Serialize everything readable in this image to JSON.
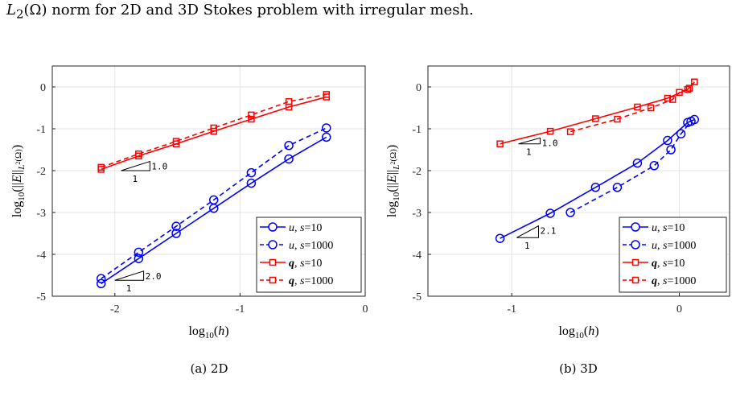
{
  "caption": {
    "prefix": "L",
    "sub": "2",
    "text": "(Ω) norm for 2D and 3D Stokes problem with irregular mesh."
  },
  "colors": {
    "u": "#0000ff",
    "q": "#ff0000",
    "grid": "#e6e6e6",
    "axis": "#262626"
  },
  "chart_data": [
    {
      "type": "line",
      "caption": "(a) 2D",
      "xlabel": "log10(h)",
      "ylabel": "log10(||E||L2(Ω))",
      "xlim": [
        -2.5,
        0
      ],
      "ylim": [
        -5,
        0.5
      ],
      "xticks": [
        -2,
        -1,
        0
      ],
      "xtick_labels": [
        "-2",
        "-1",
        "0"
      ],
      "yticks": [
        0,
        -1,
        -2,
        -3,
        -4,
        -5
      ],
      "ytick_labels": [
        "0",
        "-1",
        "-2",
        "-3",
        "-4",
        "-5"
      ],
      "grid": true,
      "legend_position": "bottom-right",
      "series": [
        {
          "name": "u, s=10",
          "var": "u",
          "s": "s=10",
          "color": "#0000ff",
          "marker": "circle",
          "dash": false,
          "x": [
            -2.11,
            -1.81,
            -1.51,
            -1.21,
            -0.91,
            -0.61,
            -0.31
          ],
          "y": [
            -4.7,
            -4.1,
            -3.5,
            -2.9,
            -2.3,
            -1.72,
            -1.2
          ]
        },
        {
          "name": "u, s=1000",
          "var": "u",
          "s": "s=1000",
          "color": "#0000ff",
          "marker": "circle",
          "dash": true,
          "x": [
            -2.11,
            -1.81,
            -1.51,
            -1.21,
            -0.91,
            -0.61,
            -0.31
          ],
          "y": [
            -4.58,
            -3.95,
            -3.33,
            -2.7,
            -2.05,
            -1.4,
            -0.98
          ]
        },
        {
          "name": "q, s=10",
          "var": "q",
          "s": "s=10",
          "color": "#ff0000",
          "marker": "square",
          "dash": false,
          "x": [
            -2.11,
            -1.81,
            -1.51,
            -1.21,
            -0.91,
            -0.61,
            -0.31
          ],
          "y": [
            -1.97,
            -1.65,
            -1.36,
            -1.06,
            -0.77,
            -0.48,
            -0.24
          ]
        },
        {
          "name": "q, s=1000",
          "var": "q",
          "s": "s=1000",
          "color": "#ff0000",
          "marker": "square",
          "dash": true,
          "x": [
            -2.11,
            -1.81,
            -1.51,
            -1.21,
            -0.91,
            -0.61,
            -0.31
          ],
          "y": [
            -1.92,
            -1.6,
            -1.3,
            -0.98,
            -0.67,
            -0.35,
            -0.18
          ]
        }
      ],
      "slope_triangles": [
        {
          "label": "1.0",
          "run_label": "1",
          "x0": -1.95,
          "x1": -1.72,
          "y0": -2.0,
          "y1": -1.78
        },
        {
          "label": "2.0",
          "run_label": "1",
          "x0": -2.0,
          "x1": -1.77,
          "y0": -4.62,
          "y1": -4.4
        }
      ]
    },
    {
      "type": "line",
      "caption": "(b) 3D",
      "xlabel": "log10(h)",
      "ylabel": "log10(||E||L2(Ω))",
      "xlim": [
        -1.5,
        0.3
      ],
      "ylim": [
        -5,
        0.5
      ],
      "xticks": [
        -1,
        0
      ],
      "xtick_labels": [
        "-1",
        "0"
      ],
      "yticks": [
        0,
        -1,
        -2,
        -3,
        -4,
        -5
      ],
      "ytick_labels": [
        "0",
        "-1",
        "-2",
        "-3",
        "-4",
        "-5"
      ],
      "grid": true,
      "legend_position": "bottom-right",
      "series": [
        {
          "name": "u, s=10",
          "var": "u",
          "s": "s=10",
          "color": "#0000ff",
          "marker": "circle",
          "dash": false,
          "x": [
            -1.07,
            -0.77,
            -0.5,
            -0.25,
            -0.07,
            0.05,
            0.09
          ],
          "y": [
            -3.62,
            -3.02,
            -2.4,
            -1.82,
            -1.28,
            -0.85,
            -0.78
          ]
        },
        {
          "name": "u, s=1000",
          "var": "u",
          "s": "s=1000",
          "color": "#0000ff",
          "marker": "circle",
          "dash": true,
          "x": [
            -0.65,
            -0.37,
            -0.15,
            -0.05,
            0.01,
            0.07
          ],
          "y": [
            -3.0,
            -2.4,
            -1.88,
            -1.5,
            -1.12,
            -0.82
          ]
        },
        {
          "name": "q, s=10",
          "var": "q",
          "s": "s=10",
          "color": "#ff0000",
          "marker": "square",
          "dash": false,
          "x": [
            -1.07,
            -0.77,
            -0.5,
            -0.25,
            -0.07,
            0.05,
            0.09
          ],
          "y": [
            -1.36,
            -1.06,
            -0.76,
            -0.48,
            -0.27,
            -0.06,
            0.12
          ]
        },
        {
          "name": "q, s=1000",
          "var": "q",
          "s": "s=1000",
          "color": "#ff0000",
          "marker": "square",
          "dash": true,
          "x": [
            -0.65,
            -0.37,
            -0.17,
            -0.04,
            0.0,
            0.06
          ],
          "y": [
            -1.07,
            -0.77,
            -0.5,
            -0.3,
            -0.13,
            -0.03
          ]
        }
      ],
      "slope_triangles": [
        {
          "label": "1.0",
          "run_label": "1",
          "x0": -0.96,
          "x1": -0.83,
          "y0": -1.36,
          "y1": -1.22
        },
        {
          "label": "2.1",
          "run_label": "1",
          "x0": -0.97,
          "x1": -0.84,
          "y0": -3.6,
          "y1": -3.32
        }
      ]
    }
  ]
}
